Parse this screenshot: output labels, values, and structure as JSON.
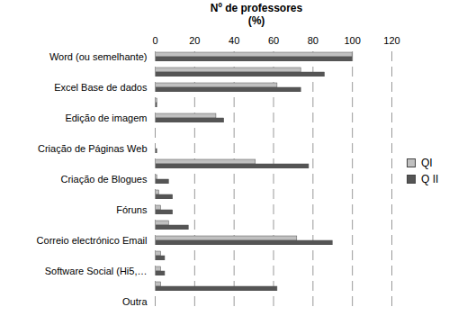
{
  "chart_data": {
    "type": "bar",
    "orientation": "horizontal",
    "title": "Nº de professores",
    "xlabel": "(%)",
    "categories": [
      "Word (ou semelhante)",
      null,
      "Excel Base de dados",
      null,
      "Edição de imagem",
      null,
      "Criação de Páginas Web",
      null,
      "Criação de Blogues",
      null,
      "Fóruns",
      null,
      "Correio electrónico Email",
      null,
      "Software Social (Hi5,…",
      null,
      "Outra"
    ],
    "series": [
      {
        "name": "QI",
        "color": "#c0c0c0",
        "values": [
          100,
          74,
          62,
          1,
          31,
          0,
          0,
          51,
          1,
          2,
          3,
          7,
          72,
          3,
          3,
          3,
          0
        ]
      },
      {
        "name": "Q II",
        "color": "#555555",
        "values": [
          100,
          86,
          74,
          1,
          35,
          0,
          1,
          78,
          7,
          9,
          9,
          17,
          90,
          5,
          5,
          62,
          0
        ]
      }
    ],
    "xlim": [
      0,
      120
    ],
    "xticks": [
      0,
      20,
      40,
      60,
      80,
      100,
      120
    ],
    "grid": true,
    "legend": "right"
  }
}
